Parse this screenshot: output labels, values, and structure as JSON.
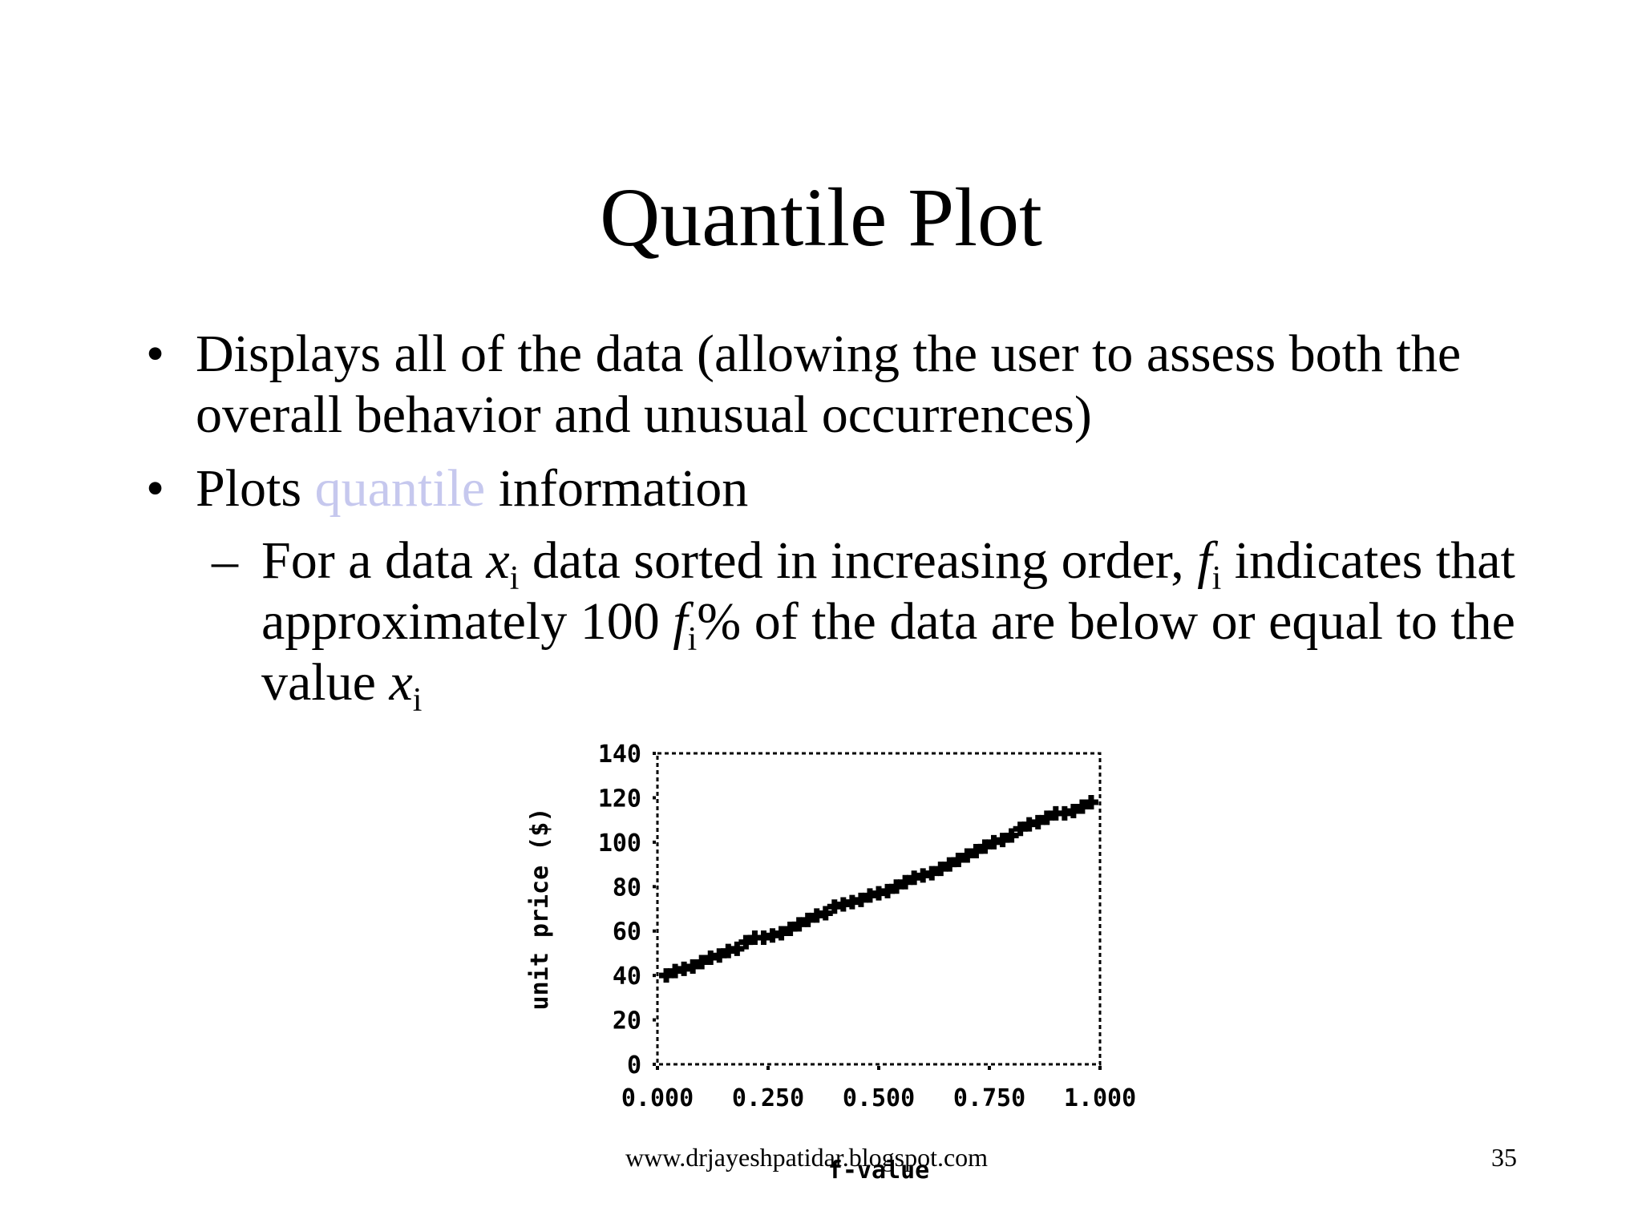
{
  "slide": {
    "title": "Quantile Plot",
    "bullets": [
      {
        "marker": "•",
        "text": "Displays all of the data (allowing the user to assess both the overall behavior and unusual occurrences)"
      },
      {
        "marker": "•",
        "before": "Plots ",
        "highlight": "quantile",
        "after": " information"
      }
    ],
    "sub_bullet": {
      "marker": "–",
      "p1": "For a data ",
      "x_var": "x",
      "sub_i": "i",
      "p2": " data sorted in increasing order, ",
      "f_var": "f",
      "p3": " indicates that approximately 100 ",
      "p4": "% of the data are below or equal to the value "
    },
    "footer": {
      "url": "www.drjayeshpatidar.blogspot.com",
      "page": "35"
    },
    "highlight_color": "#c6c8ee"
  },
  "chart_data": {
    "type": "scatter",
    "title": "",
    "xlabel": "f-value",
    "ylabel": "unit price ($)",
    "xlim": [
      0,
      1
    ],
    "ylim": [
      0,
      140
    ],
    "x_ticks": [
      "0.000",
      "0.250",
      "0.500",
      "0.750",
      "1.000"
    ],
    "y_ticks": [
      "0",
      "20",
      "40",
      "60",
      "80",
      "100",
      "120",
      "140"
    ],
    "grid": false,
    "series": [
      {
        "marker": "plus",
        "points": [
          [
            0.02,
            40
          ],
          [
            0.04,
            42
          ],
          [
            0.06,
            43
          ],
          [
            0.08,
            44
          ],
          [
            0.1,
            46
          ],
          [
            0.12,
            48
          ],
          [
            0.14,
            49
          ],
          [
            0.16,
            51
          ],
          [
            0.18,
            52
          ],
          [
            0.2,
            55
          ],
          [
            0.22,
            57
          ],
          [
            0.24,
            57
          ],
          [
            0.26,
            58
          ],
          [
            0.28,
            59
          ],
          [
            0.3,
            61
          ],
          [
            0.32,
            63
          ],
          [
            0.34,
            65
          ],
          [
            0.36,
            67
          ],
          [
            0.38,
            68
          ],
          [
            0.4,
            71
          ],
          [
            0.42,
            72
          ],
          [
            0.44,
            73
          ],
          [
            0.46,
            74
          ],
          [
            0.48,
            76
          ],
          [
            0.5,
            77
          ],
          [
            0.52,
            78
          ],
          [
            0.54,
            80
          ],
          [
            0.56,
            82
          ],
          [
            0.58,
            84
          ],
          [
            0.6,
            85
          ],
          [
            0.62,
            86
          ],
          [
            0.64,
            88
          ],
          [
            0.66,
            90
          ],
          [
            0.68,
            92
          ],
          [
            0.7,
            94
          ],
          [
            0.72,
            96
          ],
          [
            0.74,
            98
          ],
          [
            0.76,
            100
          ],
          [
            0.78,
            101
          ],
          [
            0.8,
            103
          ],
          [
            0.82,
            106
          ],
          [
            0.84,
            108
          ],
          [
            0.86,
            109
          ],
          [
            0.88,
            111
          ],
          [
            0.9,
            113
          ],
          [
            0.92,
            113
          ],
          [
            0.94,
            114
          ],
          [
            0.96,
            116
          ],
          [
            0.98,
            118
          ]
        ]
      }
    ]
  }
}
